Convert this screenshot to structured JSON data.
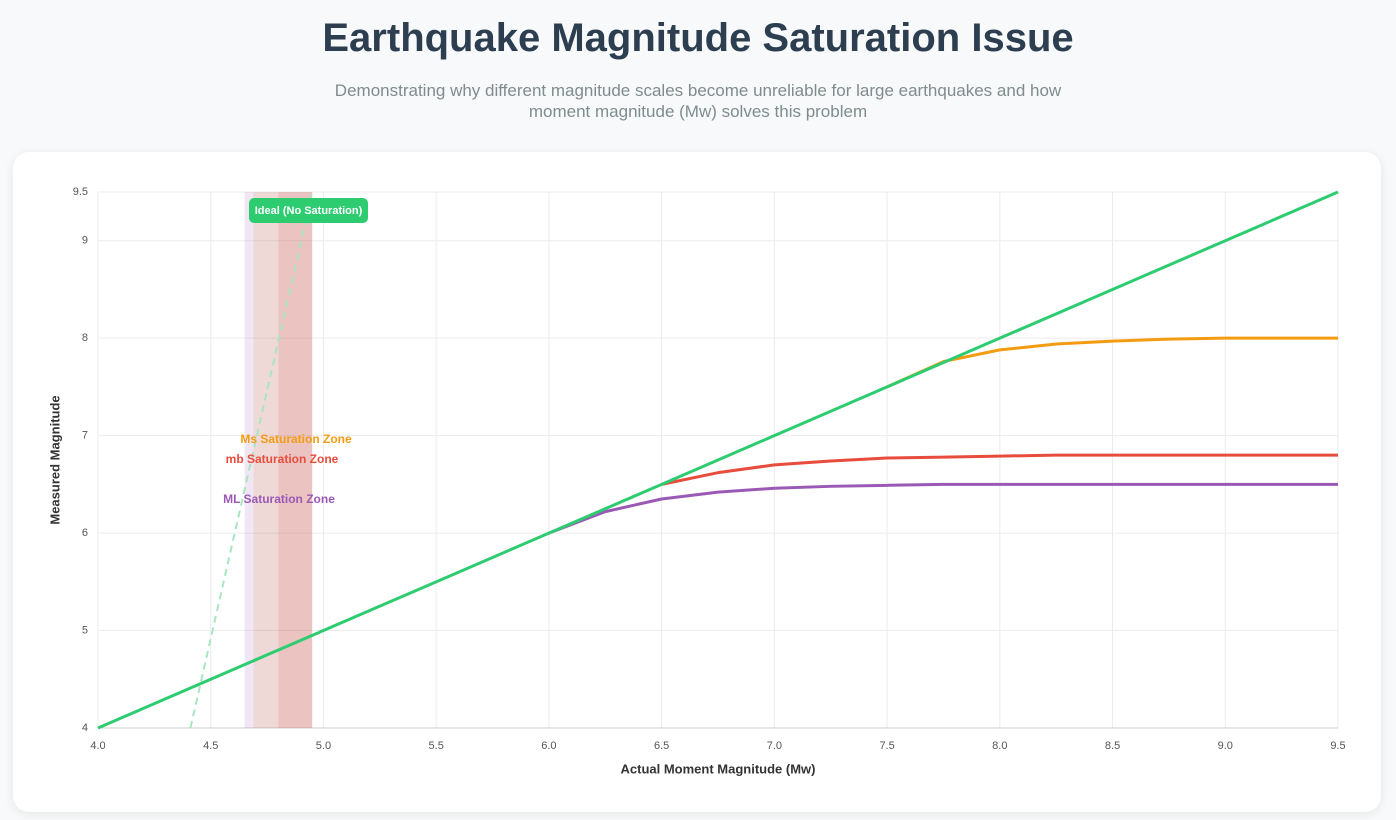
{
  "chart_data": {
    "type": "line",
    "title": "Earthquake Magnitude Saturation Issue",
    "subtitle": "Demonstrating why different magnitude scales become unreliable for large earthquakes and how moment magnitude (Mw) solves this problem",
    "x_label": "Actual Moment Magnitude (Mw)",
    "y_label": "Measured Magnitude",
    "x": [
      4,
      4.25,
      4.5,
      4.75,
      5,
      5.25,
      5.5,
      5.75,
      6,
      6.25,
      6.5,
      6.75,
      7,
      7.25,
      7.5,
      7.75,
      8,
      8.25,
      8.5,
      8.75,
      9,
      9.25,
      9.5
    ],
    "series": [
      {
        "color": "#9b59b6",
        "values": [
          null,
          null,
          null,
          null,
          null,
          null,
          null,
          null,
          6.0,
          6.22,
          6.35,
          6.42,
          6.46,
          6.48,
          6.49,
          6.5,
          6.5,
          6.5,
          6.5,
          6.5,
          6.5,
          6.5,
          6.5
        ]
      },
      {
        "color": "#e74c3c",
        "values": [
          null,
          null,
          null,
          null,
          null,
          null,
          null,
          null,
          null,
          null,
          6.5,
          6.62,
          6.7,
          6.74,
          6.77,
          6.78,
          6.79,
          6.8,
          6.8,
          6.8,
          6.8,
          6.8,
          6.8
        ]
      },
      {
        "color": "#f39c12",
        "values": [
          null,
          null,
          null,
          null,
          null,
          null,
          null,
          null,
          null,
          null,
          null,
          null,
          null,
          null,
          7.5,
          7.76,
          7.88,
          7.94,
          7.97,
          7.99,
          8.0,
          8.0,
          8.0
        ]
      },
      {
        "name": "Ideal (No Saturation)",
        "color": "#2ecc71",
        "values": [
          4,
          4.25,
          4.5,
          4.75,
          5,
          5.25,
          5.5,
          5.75,
          6,
          6.25,
          6.5,
          6.75,
          7,
          7.25,
          7.5,
          7.75,
          8,
          8.25,
          8.5,
          8.75,
          9,
          9.25,
          9.5
        ]
      }
    ],
    "reference_line": {
      "color": "#a8e6c1",
      "x": [
        4.41,
        4.95
      ],
      "values": [
        4,
        9.5
      ]
    },
    "zones": [
      {
        "label": "Ms Saturation Zone",
        "color": "#f39c12",
        "xrange": [
          4.69,
          4.95
        ]
      },
      {
        "label": "mb Saturation Zone",
        "color": "#e74c3c",
        "xrange": [
          4.8,
          4.95
        ]
      },
      {
        "label": "ML Saturation Zone",
        "color": "#9b59b6",
        "xrange": [
          4.65,
          4.95
        ]
      }
    ],
    "xlim": [
      4,
      9.5
    ],
    "ylim": [
      4,
      9.5
    ],
    "xticks": [
      {
        "value": 4,
        "label": "4.0"
      },
      4.5,
      {
        "value": 5,
        "label": "5.0"
      },
      5.5,
      {
        "value": 6,
        "label": "6.0"
      },
      6.5,
      {
        "value": 7,
        "label": "7.0"
      },
      7.5,
      {
        "value": 8,
        "label": "8.0"
      },
      8.5,
      {
        "value": 9,
        "label": "9.0"
      },
      9.5
    ],
    "yticks": [
      4,
      5,
      6,
      7,
      8,
      9,
      9.5
    ],
    "grid": true
  }
}
